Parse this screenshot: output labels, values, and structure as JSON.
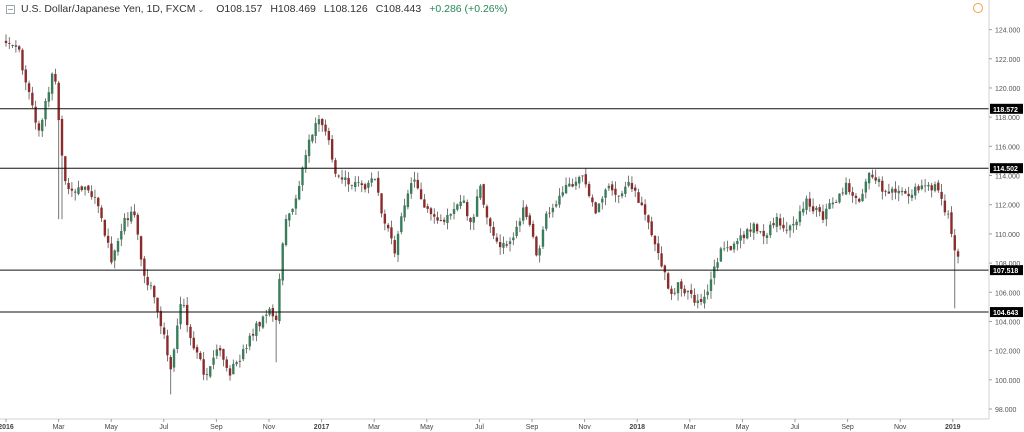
{
  "header": {
    "title": "U.S. Dollar/Japanese Yen, 1D, FXCM",
    "open": "O108.157",
    "high": "H108.469",
    "low": "L108.126",
    "close": "C108.443",
    "change": "+0.286 (+0.26%)",
    "symbol_icon": "chart-symbol-icon",
    "settings_icon": "gear-icon",
    "settings_color": "#f5a04a"
  },
  "chart_data": {
    "type": "candlestick",
    "ylim": [
      98,
      125
    ],
    "y_ticks": [
      "98.000",
      "100.000",
      "102.000",
      "104.000",
      "106.000",
      "108.000",
      "110.000",
      "112.000",
      "114.000",
      "116.000",
      "118.000",
      "120.000",
      "122.000",
      "124.000"
    ],
    "x_labels": [
      "2016",
      "Mar",
      "May",
      "Jul",
      "Sep",
      "Nov",
      "2017",
      "Mar",
      "May",
      "Jul",
      "Sep",
      "Nov",
      "2018",
      "Mar",
      "May",
      "Jul",
      "Sep",
      "Nov",
      "2019"
    ],
    "x_label_months": [
      0,
      2,
      4,
      6,
      8,
      10,
      12,
      14,
      16,
      18,
      20,
      22,
      24,
      26,
      28,
      30,
      32,
      34,
      36
    ],
    "horizontal_levels": [
      {
        "label": "118.572",
        "value": 118.572
      },
      {
        "label": "114.502",
        "value": 114.502
      },
      {
        "label": "107.518",
        "value": 107.518
      },
      {
        "label": "104.643",
        "value": 104.643
      }
    ],
    "price_path": [
      [
        0,
        123.2
      ],
      [
        0.5,
        122.6
      ],
      [
        1,
        118.5
      ],
      [
        1.25,
        117.0
      ],
      [
        1.5,
        119.2
      ],
      [
        1.85,
        121.3
      ],
      [
        2.05,
        116.5
      ],
      [
        2.3,
        113.2
      ],
      [
        2.6,
        112.8
      ],
      [
        3.0,
        113.4
      ],
      [
        3.5,
        112.3
      ],
      [
        4.0,
        108.2
      ],
      [
        4.5,
        110.8
      ],
      [
        4.9,
        111.4
      ],
      [
        5.2,
        107.3
      ],
      [
        5.6,
        106.2
      ],
      [
        6.0,
        103.1
      ],
      [
        6.3,
        100.7
      ],
      [
        6.7,
        106.2
      ],
      [
        7.0,
        102.6
      ],
      [
        7.3,
        101.4
      ],
      [
        7.6,
        100.4
      ],
      [
        8.0,
        102.3
      ],
      [
        8.5,
        100.6
      ],
      [
        9.0,
        101.9
      ],
      [
        9.5,
        103.5
      ],
      [
        10.0,
        104.9
      ],
      [
        10.25,
        104.0
      ],
      [
        10.6,
        110.8
      ],
      [
        11.0,
        112.3
      ],
      [
        11.5,
        116.0
      ],
      [
        11.85,
        118.3
      ],
      [
        12.2,
        117.0
      ],
      [
        12.5,
        114.4
      ],
      [
        12.9,
        113.9
      ],
      [
        13.2,
        113.5
      ],
      [
        13.7,
        112.9
      ],
      [
        14.0,
        114.2
      ],
      [
        14.3,
        111.5
      ],
      [
        14.8,
        108.7
      ],
      [
        15.1,
        111.9
      ],
      [
        15.5,
        113.6
      ],
      [
        15.8,
        112.1
      ],
      [
        16.2,
        111.0
      ],
      [
        16.5,
        110.8
      ],
      [
        17.0,
        111.7
      ],
      [
        17.3,
        112.6
      ],
      [
        17.7,
        110.3
      ],
      [
        18.0,
        113.6
      ],
      [
        18.4,
        110.4
      ],
      [
        18.8,
        109.3
      ],
      [
        19.3,
        109.8
      ],
      [
        19.7,
        111.9
      ],
      [
        20.2,
        108.4
      ],
      [
        20.5,
        111.2
      ],
      [
        21.0,
        112.6
      ],
      [
        21.5,
        113.5
      ],
      [
        22.0,
        114.0
      ],
      [
        22.4,
        111.5
      ],
      [
        22.8,
        113.0
      ],
      [
        23.3,
        112.8
      ],
      [
        23.6,
        113.6
      ],
      [
        24.0,
        112.6
      ],
      [
        24.4,
        110.8
      ],
      [
        24.8,
        108.6
      ],
      [
        25.2,
        106.1
      ],
      [
        25.6,
        106.4
      ],
      [
        26.0,
        105.9
      ],
      [
        26.4,
        104.9
      ],
      [
        26.8,
        106.5
      ],
      [
        27.2,
        109.4
      ],
      [
        27.6,
        109.2
      ],
      [
        28.0,
        109.7
      ],
      [
        28.4,
        110.6
      ],
      [
        28.8,
        109.9
      ],
      [
        29.3,
        110.9
      ],
      [
        29.7,
        110.3
      ],
      [
        30.1,
        111.2
      ],
      [
        30.5,
        112.3
      ],
      [
        31.0,
        111.0
      ],
      [
        31.5,
        112.4
      ],
      [
        32.0,
        113.3
      ],
      [
        32.4,
        111.9
      ],
      [
        32.8,
        113.9
      ],
      [
        33.2,
        113.4
      ],
      [
        33.5,
        112.7
      ],
      [
        34.0,
        113.3
      ],
      [
        34.4,
        112.8
      ],
      [
        34.8,
        113.0
      ],
      [
        35.3,
        113.4
      ],
      [
        35.6,
        112.4
      ],
      [
        35.9,
        110.6
      ],
      [
        36.05,
        108.9
      ],
      [
        36.2,
        108.44
      ]
    ],
    "candle_count": 290
  }
}
